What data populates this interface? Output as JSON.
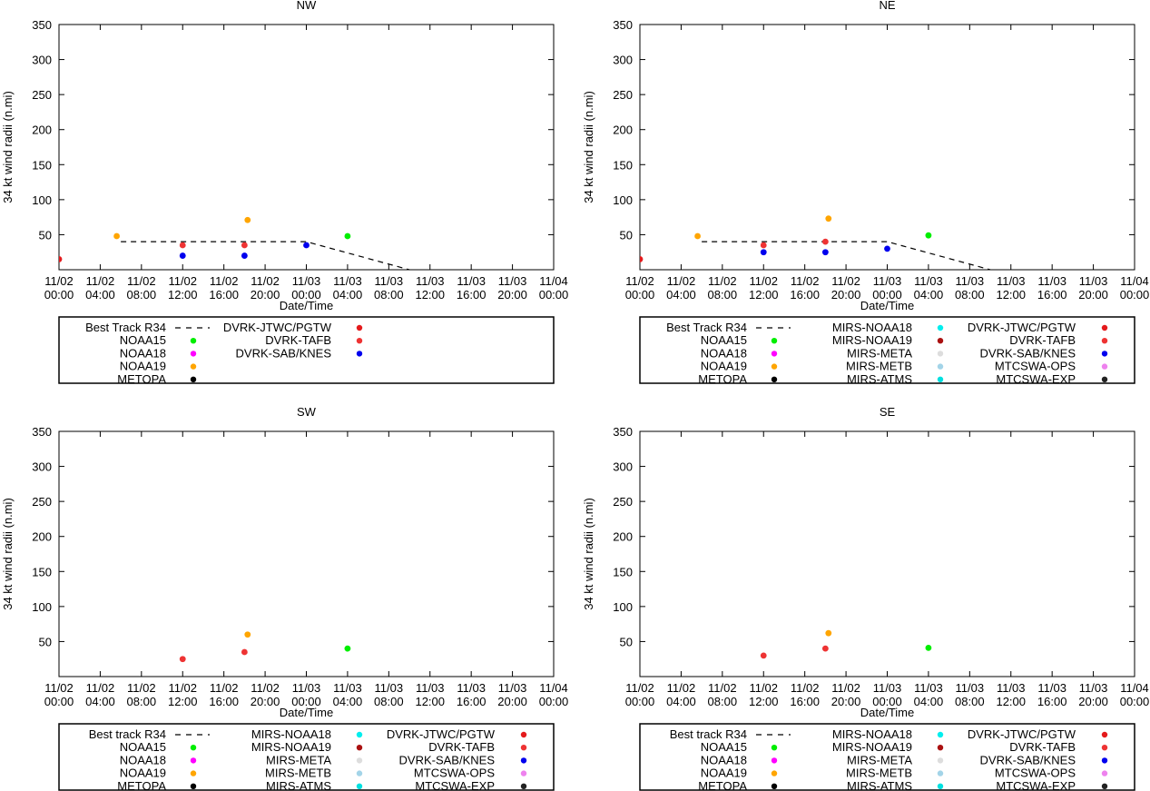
{
  "chart_data": [
    {
      "type": "scatter",
      "title": "NW",
      "xlabel": "Date/Time",
      "ylabel": "34 kt wind radii (n.mi)",
      "ylim": [
        0,
        350
      ],
      "xlim": [
        0,
        48
      ],
      "y_ticks": [
        "50",
        "100",
        "150",
        "200",
        "250",
        "300",
        "350"
      ],
      "x_ticks": [
        "11/02\n00:00",
        "11/02\n04:00",
        "11/02\n08:00",
        "11/02\n12:00",
        "11/02\n16:00",
        "11/02\n20:00",
        "11/03\n00:00",
        "11/03\n04:00",
        "11/03\n08:00",
        "11/03\n12:00",
        "11/03\n16:00",
        "11/03\n20:00",
        "11/04\n00:00"
      ],
      "best_track": {
        "name": "Best Track R34",
        "x": [
          6,
          24,
          34
        ],
        "y": [
          40,
          40,
          0
        ]
      },
      "points": [
        {
          "series": "DVRK-JTWC/PGTW",
          "x": 0,
          "y": 15
        },
        {
          "series": "NOAA19",
          "x": 5.6,
          "y": 48
        },
        {
          "series": "DVRK-TAFB",
          "x": 12,
          "y": 35
        },
        {
          "series": "DVRK-SAB/KNES",
          "x": 12,
          "y": 20
        },
        {
          "series": "DVRK-TAFB",
          "x": 18,
          "y": 35
        },
        {
          "series": "DVRK-SAB/KNES",
          "x": 18,
          "y": 20
        },
        {
          "series": "NOAA19",
          "x": 18.3,
          "y": 71
        },
        {
          "series": "DVRK-SAB/KNES",
          "x": 24,
          "y": 35
        },
        {
          "series": "NOAA15",
          "x": 28,
          "y": 48
        }
      ],
      "legend": {
        "columns": [
          [
            {
              "name": "Best Track R34",
              "kind": "line"
            },
            {
              "name": "NOAA15",
              "color": "#00ee00"
            },
            {
              "name": "NOAA18",
              "color": "#ff00ff"
            },
            {
              "name": "NOAA19",
              "color": "#ffa500"
            },
            {
              "name": "METOPA",
              "color": "#000000"
            }
          ],
          [
            {
              "name": "DVRK-JTWC/PGTW",
              "color": "#e41a1c"
            },
            {
              "name": "DVRK-TAFB",
              "color": "#ee3333"
            },
            {
              "name": "DVRK-SAB/KNES",
              "color": "#0000ee"
            }
          ]
        ]
      }
    },
    {
      "type": "scatter",
      "title": "NE",
      "xlabel": "Date/Time",
      "ylabel": "34 kt wind radii (n.mi)",
      "ylim": [
        0,
        350
      ],
      "xlim": [
        0,
        48
      ],
      "y_ticks": [
        "50",
        "100",
        "150",
        "200",
        "250",
        "300",
        "350"
      ],
      "x_ticks": [
        "11/02\n00:00",
        "11/02\n04:00",
        "11/02\n08:00",
        "11/02\n12:00",
        "11/02\n16:00",
        "11/02\n20:00",
        "11/03\n00:00",
        "11/03\n04:00",
        "11/03\n08:00",
        "11/03\n12:00",
        "11/03\n16:00",
        "11/03\n20:00",
        "11/04\n00:00"
      ],
      "best_track": {
        "name": "Best Track R34",
        "x": [
          6,
          24,
          34
        ],
        "y": [
          40,
          40,
          0
        ]
      },
      "points": [
        {
          "series": "DVRK-JTWC/PGTW",
          "x": 0,
          "y": 15
        },
        {
          "series": "NOAA19",
          "x": 5.6,
          "y": 48
        },
        {
          "series": "DVRK-TAFB",
          "x": 12,
          "y": 35
        },
        {
          "series": "DVRK-SAB/KNES",
          "x": 12,
          "y": 25
        },
        {
          "series": "DVRK-TAFB",
          "x": 18,
          "y": 40
        },
        {
          "series": "DVRK-SAB/KNES",
          "x": 18,
          "y": 25
        },
        {
          "series": "NOAA19",
          "x": 18.3,
          "y": 73
        },
        {
          "series": "DVRK-SAB/KNES",
          "x": 24,
          "y": 30
        },
        {
          "series": "NOAA15",
          "x": 28,
          "y": 49
        }
      ],
      "legend": {
        "columns": [
          [
            {
              "name": "Best Track R34",
              "kind": "line"
            },
            {
              "name": "NOAA15",
              "color": "#00ee00"
            },
            {
              "name": "NOAA18",
              "color": "#ff00ff"
            },
            {
              "name": "NOAA19",
              "color": "#ffa500"
            },
            {
              "name": "METOPA",
              "color": "#000000"
            }
          ],
          [
            {
              "name": "MIRS-NOAA18",
              "color": "#00eeee"
            },
            {
              "name": "MIRS-NOAA19",
              "color": "#aa1111"
            },
            {
              "name": "MIRS-META",
              "color": "#dddddd"
            },
            {
              "name": "MIRS-METB",
              "color": "#a3d4e8"
            },
            {
              "name": "MIRS-ATMS",
              "color": "#00e0e0"
            }
          ],
          [
            {
              "name": "DVRK-JTWC/PGTW",
              "color": "#e41a1c"
            },
            {
              "name": "DVRK-TAFB",
              "color": "#ee3333"
            },
            {
              "name": "DVRK-SAB/KNES",
              "color": "#0000ee"
            },
            {
              "name": "MTCSWA-OPS",
              "color": "#ee82ee"
            },
            {
              "name": "MTCSWA-EXP",
              "color": "#222222"
            }
          ]
        ]
      }
    },
    {
      "type": "scatter",
      "title": "SW",
      "xlabel": "Date/Time",
      "ylabel": "34 kt wind radii (n.mi)",
      "ylim": [
        0,
        350
      ],
      "xlim": [
        0,
        48
      ],
      "y_ticks": [
        "50",
        "100",
        "150",
        "200",
        "250",
        "300",
        "350"
      ],
      "x_ticks": [
        "11/02\n00:00",
        "11/02\n04:00",
        "11/02\n08:00",
        "11/02\n12:00",
        "11/02\n16:00",
        "11/02\n20:00",
        "11/03\n00:00",
        "11/03\n04:00",
        "11/03\n08:00",
        "11/03\n12:00",
        "11/03\n16:00",
        "11/03\n20:00",
        "11/04\n00:00"
      ],
      "best_track": null,
      "points": [
        {
          "series": "DVRK-TAFB",
          "x": 12,
          "y": 25
        },
        {
          "series": "DVRK-TAFB",
          "x": 18,
          "y": 35
        },
        {
          "series": "NOAA19",
          "x": 18.3,
          "y": 60
        },
        {
          "series": "NOAA15",
          "x": 28,
          "y": 40
        }
      ],
      "legend": {
        "columns": [
          [
            {
              "name": "Best track R34",
              "kind": "line"
            },
            {
              "name": "NOAA15",
              "color": "#00ee00"
            },
            {
              "name": "NOAA18",
              "color": "#ff00ff"
            },
            {
              "name": "NOAA19",
              "color": "#ffa500"
            },
            {
              "name": "METOPA",
              "color": "#000000"
            }
          ],
          [
            {
              "name": "MIRS-NOAA18",
              "color": "#00eeee"
            },
            {
              "name": "MIRS-NOAA19",
              "color": "#aa1111"
            },
            {
              "name": "MIRS-META",
              "color": "#dddddd"
            },
            {
              "name": "MIRS-METB",
              "color": "#a3d4e8"
            },
            {
              "name": "MIRS-ATMS",
              "color": "#00e0e0"
            }
          ],
          [
            {
              "name": "DVRK-JTWC/PGTW",
              "color": "#e41a1c"
            },
            {
              "name": "DVRK-TAFB",
              "color": "#ee3333"
            },
            {
              "name": "DVRK-SAB/KNES",
              "color": "#0000ee"
            },
            {
              "name": "MTCSWA-OPS",
              "color": "#ee82ee"
            },
            {
              "name": "MTCSWA-EXP",
              "color": "#222222"
            }
          ]
        ]
      }
    },
    {
      "type": "scatter",
      "title": "SE",
      "xlabel": "Date/Time",
      "ylabel": "34 kt wind radii (n.mi)",
      "ylim": [
        0,
        350
      ],
      "xlim": [
        0,
        48
      ],
      "y_ticks": [
        "50",
        "100",
        "150",
        "200",
        "250",
        "300",
        "350"
      ],
      "x_ticks": [
        "11/02\n00:00",
        "11/02\n04:00",
        "11/02\n08:00",
        "11/02\n12:00",
        "11/02\n16:00",
        "11/02\n20:00",
        "11/03\n00:00",
        "11/03\n04:00",
        "11/03\n08:00",
        "11/03\n12:00",
        "11/03\n16:00",
        "11/03\n20:00",
        "11/04\n00:00"
      ],
      "best_track": null,
      "points": [
        {
          "series": "DVRK-TAFB",
          "x": 12,
          "y": 30
        },
        {
          "series": "DVRK-TAFB",
          "x": 18,
          "y": 40
        },
        {
          "series": "NOAA19",
          "x": 18.3,
          "y": 62
        },
        {
          "series": "NOAA15",
          "x": 28,
          "y": 41
        }
      ],
      "legend": {
        "columns": [
          [
            {
              "name": "Best track R34",
              "kind": "line"
            },
            {
              "name": "NOAA15",
              "color": "#00ee00"
            },
            {
              "name": "NOAA18",
              "color": "#ff00ff"
            },
            {
              "name": "NOAA19",
              "color": "#ffa500"
            },
            {
              "name": "METOPA",
              "color": "#000000"
            }
          ],
          [
            {
              "name": "MIRS-NOAA18",
              "color": "#00eeee"
            },
            {
              "name": "MIRS-NOAA19",
              "color": "#aa1111"
            },
            {
              "name": "MIRS-META",
              "color": "#dddddd"
            },
            {
              "name": "MIRS-METB",
              "color": "#a3d4e8"
            },
            {
              "name": "MIRS-ATMS",
              "color": "#00e0e0"
            }
          ],
          [
            {
              "name": "DVRK-JTWC/PGTW",
              "color": "#e41a1c"
            },
            {
              "name": "DVRK-TAFB",
              "color": "#ee3333"
            },
            {
              "name": "DVRK-SAB/KNES",
              "color": "#0000ee"
            },
            {
              "name": "MTCSWA-OPS",
              "color": "#ee82ee"
            },
            {
              "name": "MTCSWA-EXP",
              "color": "#222222"
            }
          ]
        ]
      }
    }
  ],
  "series_colors": {
    "NOAA15": "#00ee00",
    "NOAA18": "#ff00ff",
    "NOAA19": "#ffa500",
    "METOPA": "#000000",
    "DVRK-JTWC/PGTW": "#e41a1c",
    "DVRK-TAFB": "#ee3333",
    "DVRK-SAB/KNES": "#0000ee"
  }
}
